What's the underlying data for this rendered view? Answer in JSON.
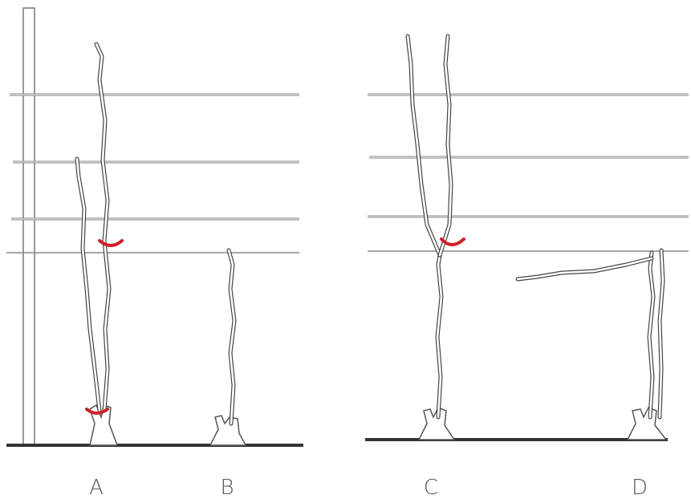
{
  "figures": [
    {
      "label": "A"
    },
    {
      "label": "B"
    },
    {
      "label": "C"
    },
    {
      "label": "D"
    }
  ]
}
